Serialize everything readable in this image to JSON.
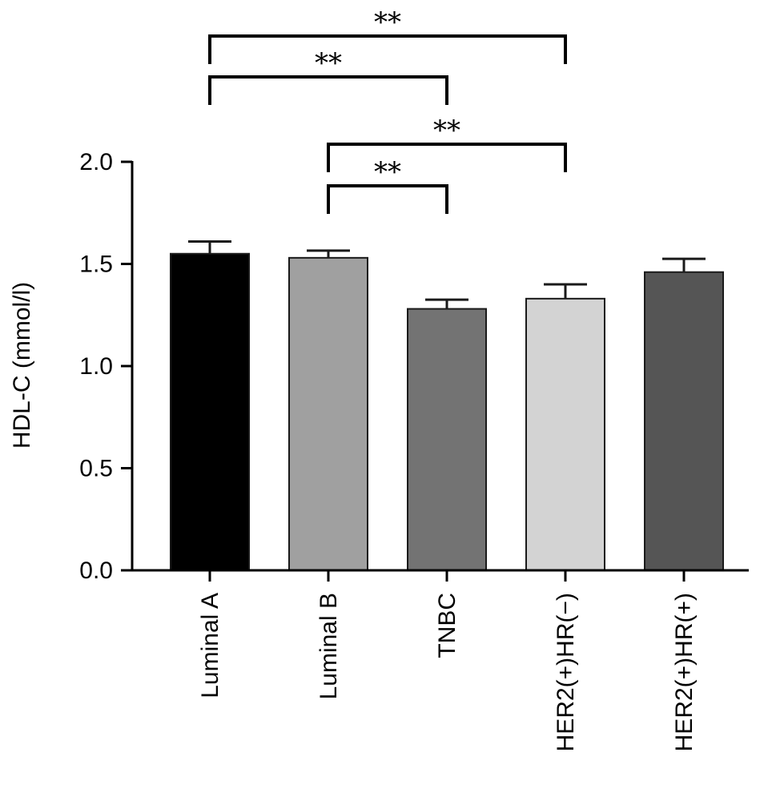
{
  "chart_data": {
    "type": "bar",
    "ylabel": "HDL-C (mmol/l)",
    "xlabel": "",
    "ylim": [
      0,
      2.0
    ],
    "yticks": [
      "0.0",
      "0.5",
      "1.0",
      "1.5",
      "2.0"
    ],
    "categories": [
      "Luminal A",
      "Luminal B",
      "TNBC",
      "HER2(+)HR(−)",
      "HER2(+)HR(+)"
    ],
    "values": [
      1.55,
      1.53,
      1.28,
      1.33,
      1.46
    ],
    "errors": [
      0.06,
      0.035,
      0.045,
      0.07,
      0.065
    ],
    "colors": [
      "#000000",
      "#a0a0a0",
      "#737373",
      "#d3d3d3",
      "#555555"
    ],
    "significance": [
      {
        "from": 0,
        "to": 3,
        "label": "**"
      },
      {
        "from": 0,
        "to": 2,
        "label": "**"
      },
      {
        "from": 1,
        "to": 3,
        "label": "**"
      },
      {
        "from": 1,
        "to": 2,
        "label": "**"
      }
    ],
    "grid": false,
    "legend": "none"
  }
}
